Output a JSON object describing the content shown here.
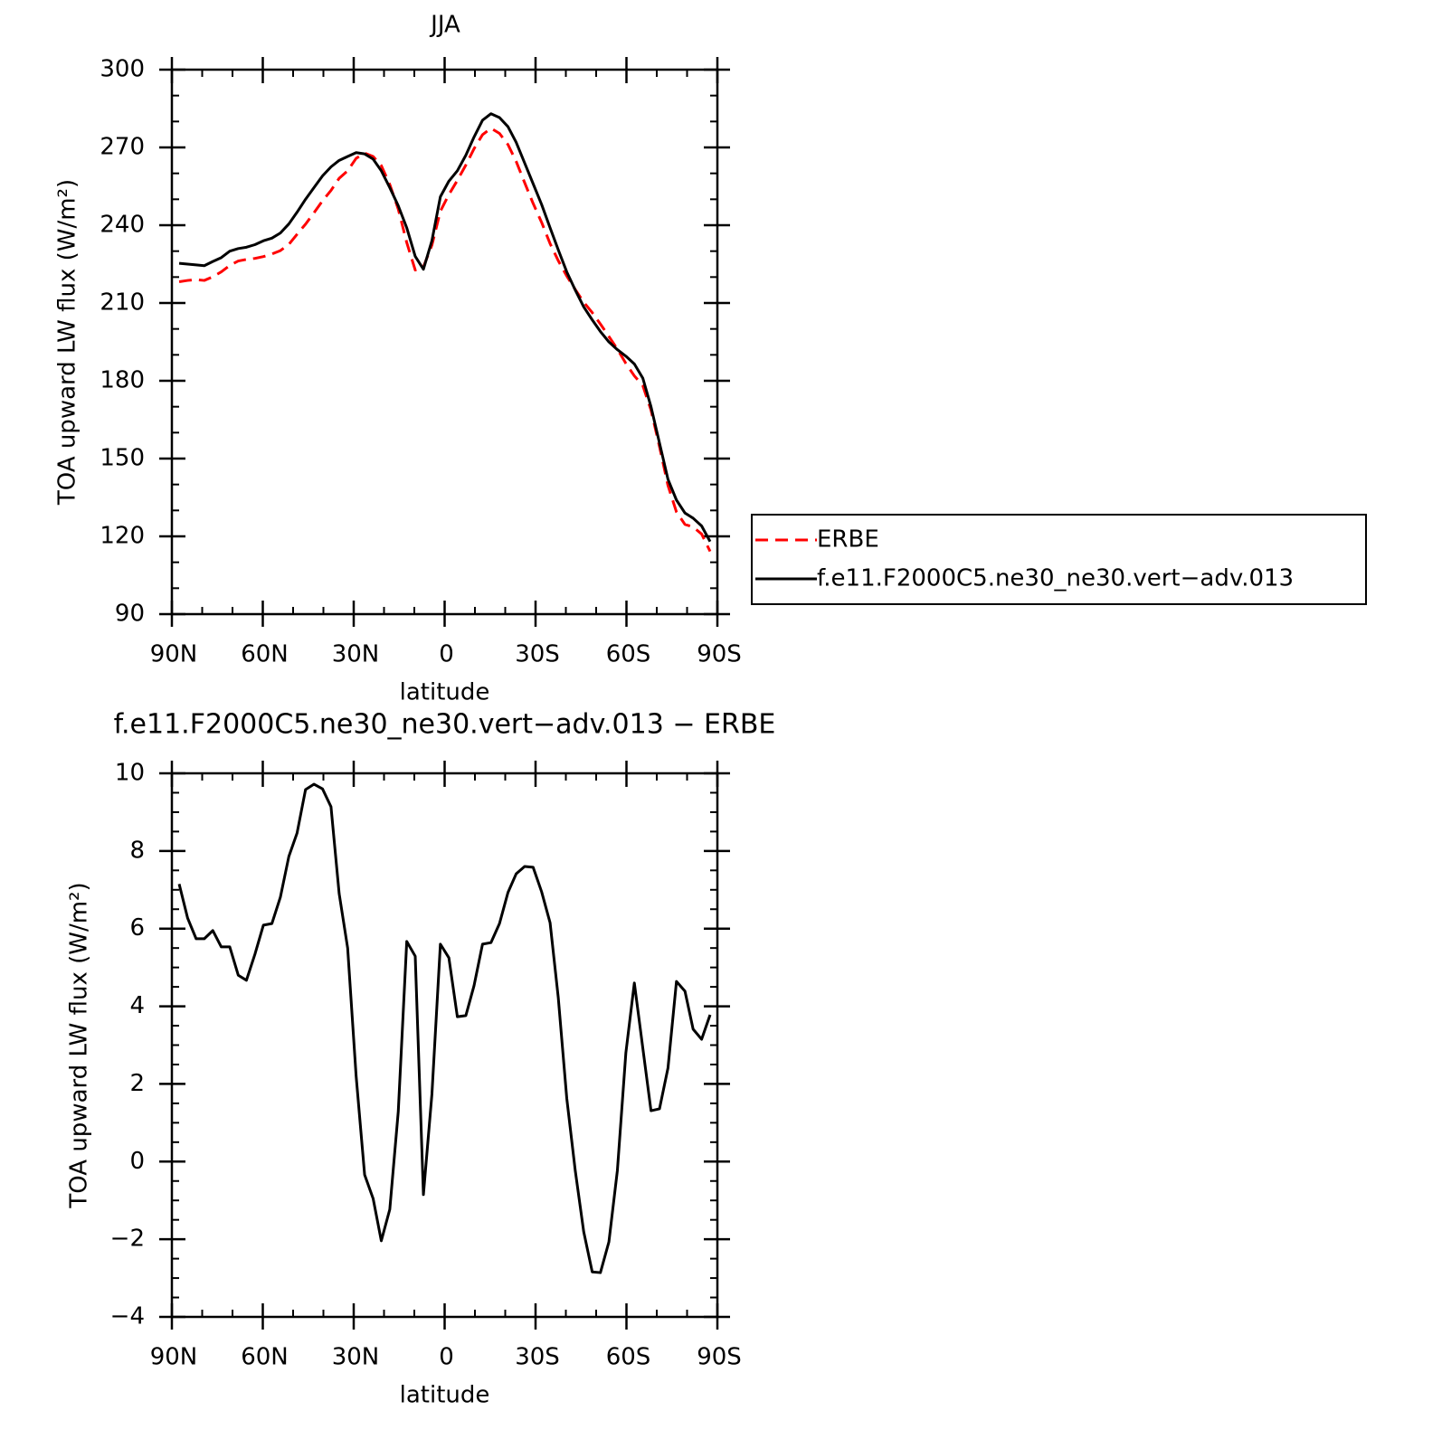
{
  "chart_data": [
    {
      "type": "line",
      "title": "JJA",
      "xlabel": "latitude",
      "ylabel": "TOA upward LW flux (W/m²)",
      "x": [
        87.6,
        84.8,
        82.0,
        79.3,
        76.5,
        73.7,
        70.9,
        68.1,
        65.4,
        62.6,
        59.8,
        57.0,
        54.2,
        51.4,
        48.7,
        45.9,
        43.1,
        40.3,
        37.5,
        34.8,
        32.0,
        29.2,
        26.4,
        23.6,
        20.9,
        18.1,
        15.3,
        12.5,
        9.7,
        7.0,
        4.2,
        1.4,
        -1.4,
        -4.2,
        -7.0,
        -9.7,
        -12.5,
        -15.3,
        -18.1,
        -20.9,
        -23.6,
        -26.4,
        -29.2,
        -32.0,
        -34.8,
        -37.5,
        -40.3,
        -43.1,
        -45.9,
        -48.7,
        -51.4,
        -54.2,
        -57.0,
        -59.8,
        -62.6,
        -65.4,
        -68.1,
        -70.9,
        -73.7,
        -76.5,
        -79.3,
        -82.0,
        -84.8,
        -87.6
      ],
      "series": [
        {
          "name": "ERBE",
          "color": "#ff0000",
          "line_style": "dashed",
          "values": [
            218.2,
            218.7,
            219.0,
            218.7,
            220.1,
            222.0,
            224.5,
            226.2,
            226.8,
            227.2,
            227.9,
            228.9,
            230.2,
            232.6,
            236.5,
            240.4,
            244.8,
            249.4,
            253.4,
            258.1,
            261.0,
            265.8,
            267.8,
            266.5,
            263.0,
            255.7,
            246.2,
            233.3,
            222.7,
            223.9,
            232.3,
            245.4,
            251.8,
            257.3,
            263.2,
            269.5,
            274.9,
            277.4,
            275.4,
            271.1,
            264.6,
            256.4,
            248.4,
            241.1,
            232.9,
            226.3,
            220.4,
            215.2,
            210.3,
            206.3,
            201.9,
            197.1,
            192.2,
            186.7,
            181.9,
            178.1,
            168.7,
            154.6,
            139.6,
            129.4,
            124.6,
            123.6,
            120.9,
            114.2
          ]
        },
        {
          "name": "f.e11.F2000C5.ne30_ne30.vert−adv.013",
          "color": "#000000",
          "line_style": "solid",
          "values": [
            225.3,
            225.0,
            224.7,
            224.4,
            226.0,
            227.5,
            230.0,
            231.0,
            231.5,
            232.5,
            234.0,
            235.0,
            237.0,
            240.5,
            245.0,
            250.0,
            254.5,
            259.0,
            262.5,
            265.0,
            266.5,
            268.0,
            267.5,
            265.5,
            261.0,
            254.5,
            247.5,
            239.0,
            228.0,
            223.0,
            234.0,
            251.0,
            257.0,
            261.0,
            267.0,
            274.0,
            280.5,
            283.0,
            281.5,
            278.0,
            272.0,
            264.0,
            256.0,
            248.0,
            239.0,
            230.5,
            222.0,
            215.0,
            208.5,
            203.5,
            199.0,
            195.0,
            192.0,
            189.5,
            186.5,
            181.0,
            170.0,
            156.0,
            142.0,
            134.0,
            129.0,
            127.0,
            124.0,
            118.0
          ]
        }
      ],
      "xlim": [
        90,
        -90
      ],
      "xticks": [
        {
          "value": 90,
          "label": "90N"
        },
        {
          "value": 60,
          "label": "60N"
        },
        {
          "value": 30,
          "label": "30N"
        },
        0,
        {
          "value": -30,
          "label": "30S"
        },
        {
          "value": -60,
          "label": "60S"
        },
        {
          "value": -90,
          "label": "90S"
        }
      ],
      "ylim": [
        90,
        300
      ],
      "yticks": [
        90,
        120,
        150,
        180,
        210,
        240,
        270,
        300
      ],
      "xminor_divisions": 3,
      "yminor_divisions": 3,
      "legend": "right"
    },
    {
      "type": "line",
      "title": "f.e11.F2000C5.ne30_ne30.vert−adv.013 − ERBE",
      "xlabel": "latitude",
      "ylabel": "TOA upward LW flux (W/m²)",
      "x": [
        87.6,
        84.8,
        82.0,
        79.3,
        76.5,
        73.7,
        70.9,
        68.1,
        65.4,
        62.6,
        59.8,
        57.0,
        54.2,
        51.4,
        48.7,
        45.9,
        43.1,
        40.3,
        37.5,
        34.8,
        32.0,
        29.2,
        26.4,
        23.6,
        20.9,
        18.1,
        15.3,
        12.5,
        9.7,
        7.0,
        4.2,
        1.4,
        -1.4,
        -4.2,
        -7.0,
        -9.7,
        -12.5,
        -15.3,
        -18.1,
        -20.9,
        -23.6,
        -26.4,
        -29.2,
        -32.0,
        -34.8,
        -37.5,
        -40.3,
        -43.1,
        -45.9,
        -48.7,
        -51.4,
        -54.2,
        -57.0,
        -59.8,
        -62.6,
        -65.4,
        -68.1,
        -70.9,
        -73.7,
        -76.5,
        -79.3,
        -82.0,
        -84.8,
        -87.6
      ],
      "color": "#000000",
      "values": [
        7.15,
        6.27,
        5.74,
        5.74,
        5.95,
        5.53,
        5.53,
        4.8,
        4.67,
        5.34,
        6.09,
        6.13,
        6.81,
        7.86,
        8.46,
        9.58,
        9.72,
        9.6,
        9.14,
        6.9,
        5.5,
        2.2,
        -0.34,
        -0.95,
        -2.04,
        -1.23,
        1.29,
        5.67,
        5.29,
        -0.85,
        1.73,
        5.6,
        5.25,
        3.73,
        3.76,
        4.53,
        5.6,
        5.64,
        6.13,
        6.93,
        7.41,
        7.6,
        7.58,
        6.95,
        6.15,
        4.22,
        1.63,
        -0.23,
        -1.81,
        -2.84,
        -2.86,
        -2.07,
        -0.23,
        2.8,
        4.6,
        2.92,
        1.31,
        1.36,
        2.41,
        4.64,
        4.39,
        3.41,
        3.15,
        3.78
      ],
      "xlim": [
        90,
        -90
      ],
      "xticks": [
        {
          "value": 90,
          "label": "90N"
        },
        {
          "value": 60,
          "label": "60N"
        },
        {
          "value": 30,
          "label": "30N"
        },
        0,
        {
          "value": -30,
          "label": "30S"
        },
        {
          "value": -60,
          "label": "60S"
        },
        {
          "value": -90,
          "label": "90S"
        }
      ],
      "ylim": [
        -4,
        10
      ],
      "yticks": [
        {
          "value": -4,
          "label": "−4"
        },
        {
          "value": -2,
          "label": "−2"
        },
        0,
        2,
        4,
        6,
        8,
        10
      ],
      "xminor_divisions": 3,
      "yminor_divisions": 4
    }
  ]
}
